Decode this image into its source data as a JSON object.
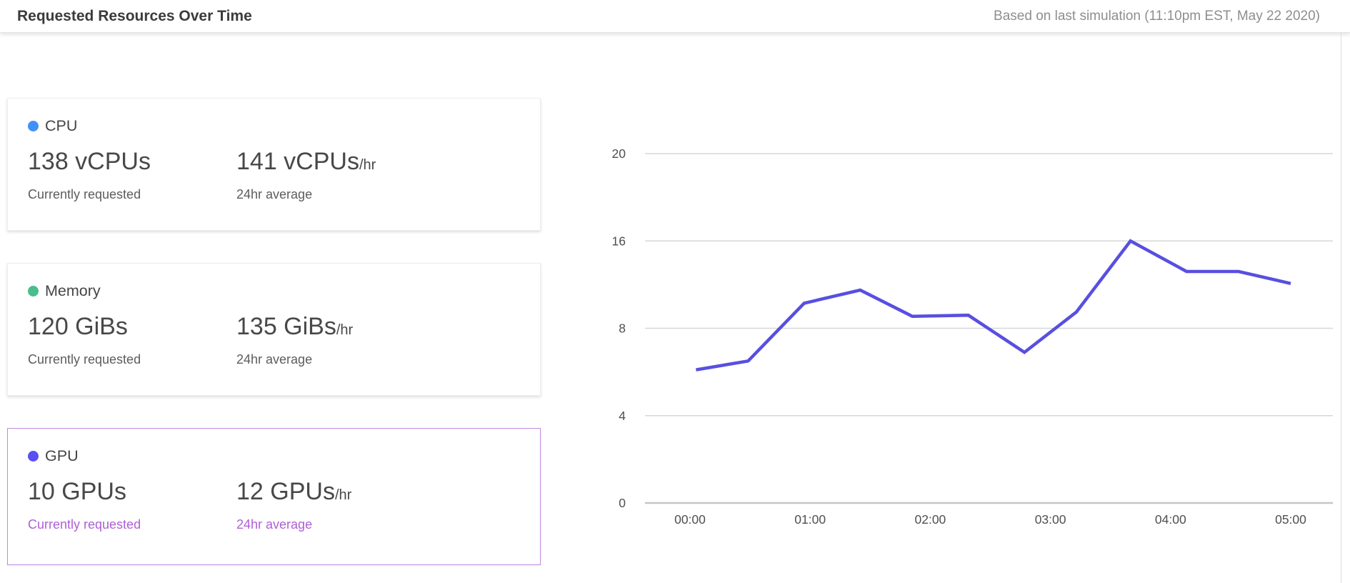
{
  "header": {
    "title": "Requested Resources Over Time",
    "subtitle": "Based on last simulation (11:10pm EST, May 22 2020)"
  },
  "cards": [
    {
      "id": "cpu",
      "label": "CPU",
      "dot_color": "#4190f7",
      "current_value": "138 vCPUs",
      "current_caption": "Currently requested",
      "average_value": "141 vCPUs",
      "average_suffix": "/hr",
      "average_caption": "24hr average",
      "selected": false
    },
    {
      "id": "memory",
      "label": "Memory",
      "dot_color": "#49bd8b",
      "current_value": "120 GiBs",
      "current_caption": "Currently requested",
      "average_value": "135 GiBs",
      "average_suffix": "/hr",
      "average_caption": "24hr average",
      "selected": false
    },
    {
      "id": "gpu",
      "label": "GPU",
      "dot_color": "#5a4ff0",
      "current_value": "10 GPUs",
      "current_caption": "Currently requested",
      "average_value": "12 GPUs",
      "average_suffix": "/hr",
      "average_caption": "24hr average",
      "selected": true
    }
  ],
  "colors": {
    "selected_border": "#c18ae3",
    "selected_caption": "#ae5fd6",
    "line": "#584fe0",
    "gridline": "#d7d7d7",
    "baseline": "#c6c6c6",
    "axis_text": "#4f4f4f"
  },
  "chart_data": {
    "type": "line",
    "title": "",
    "xlabel": "",
    "ylabel": "",
    "x_tick_labels": [
      "00:00",
      "01:00",
      "02:00",
      "03:00",
      "04:00",
      "05:00"
    ],
    "y_tick_values": [
      0,
      4,
      8,
      16,
      20
    ],
    "y_tick_labels": [
      "0",
      "4",
      "8",
      "16",
      "20"
    ],
    "layout": {
      "grid": true,
      "legend": "none",
      "y_ticks_equally_spaced": true
    },
    "series": [
      {
        "name": "GPU",
        "color": "#584fe0",
        "points": [
          {
            "time": "00:03",
            "value": 6.1
          },
          {
            "time": "00:29",
            "value": 6.5
          },
          {
            "time": "00:57",
            "value": 10.3
          },
          {
            "time": "01:25",
            "value": 11.5
          },
          {
            "time": "01:51",
            "value": 9.1
          },
          {
            "time": "02:19",
            "value": 9.2
          },
          {
            "time": "02:47",
            "value": 6.9
          },
          {
            "time": "03:13",
            "value": 9.5
          },
          {
            "time": "03:40",
            "value": 16
          },
          {
            "time": "04:08",
            "value": 13.2
          },
          {
            "time": "04:34",
            "value": 13.2
          },
          {
            "time": "05:00",
            "value": 12.1
          }
        ]
      }
    ]
  }
}
